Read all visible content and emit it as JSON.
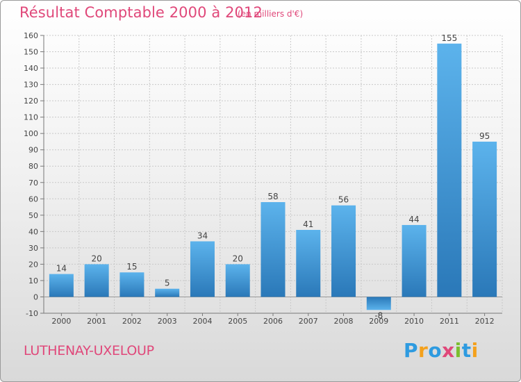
{
  "header": {
    "title": "Résultat Comptable 2000 à 2012",
    "unit_note": "(en milliers d'€)"
  },
  "footer": {
    "town": "LUTHENAY-UXELOUP",
    "brand": "Proxiti",
    "brand_letters": [
      {
        "ch": "P",
        "color": "#2e9be0"
      },
      {
        "ch": "r",
        "color": "#f4a11c"
      },
      {
        "ch": "o",
        "color": "#2e9be0"
      },
      {
        "ch": "x",
        "color": "#e0487a"
      },
      {
        "ch": "i",
        "color": "#7cbe2f"
      },
      {
        "ch": "t",
        "color": "#2e9be0"
      },
      {
        "ch": "i",
        "color": "#f4a11c"
      }
    ]
  },
  "colors": {
    "accent_text": "#e0487a",
    "bar_light": "#5cb3ec",
    "bar_dark": "#2a78b8",
    "grid": "#c8c8c8"
  },
  "chart_data": {
    "type": "bar",
    "title": "Résultat Comptable 2000 à 2012",
    "subtitle": "(en milliers d'€)",
    "categories": [
      "2000",
      "2001",
      "2002",
      "2003",
      "2004",
      "2005",
      "2006",
      "2007",
      "2008",
      "2009",
      "2010",
      "2011",
      "2012"
    ],
    "values": [
      14,
      20,
      15,
      5,
      34,
      20,
      58,
      41,
      56,
      -8,
      44,
      155,
      95
    ],
    "value_labels": [
      "14",
      "20",
      "15",
      "5",
      "34",
      "20",
      "58",
      "41",
      "56",
      "-8",
      "44",
      "155",
      "95"
    ],
    "ylim": [
      -10,
      160
    ],
    "yticks": [
      -10,
      0,
      10,
      20,
      30,
      40,
      50,
      60,
      70,
      80,
      90,
      100,
      110,
      120,
      130,
      140,
      150,
      160
    ],
    "grid": true,
    "xlabel": "",
    "ylabel": ""
  }
}
